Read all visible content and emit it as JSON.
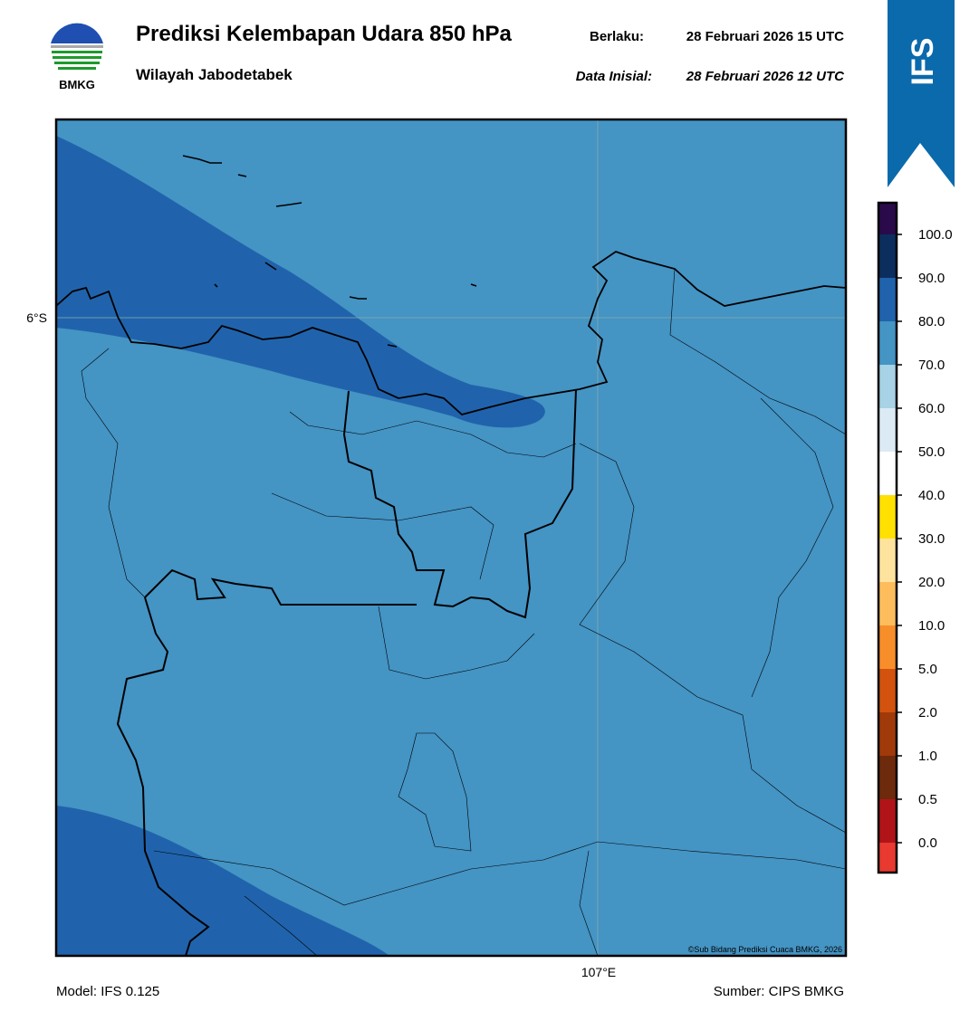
{
  "header": {
    "title": "Prediksi Kelembapan Udara 850 hPa",
    "subtitle": "Wilayah Jabodetabek",
    "valid": {
      "label": "Berlaku:",
      "value": "28 Februari 2026 15 UTC"
    },
    "init": {
      "label": "Data Inisial:",
      "value": "28 Februari 2026 12 UTC"
    }
  },
  "logo": "BMKG",
  "badge": "IFS",
  "map": {
    "lat_label": "6°S",
    "lon_label": "107°E",
    "credit": "©Sub Bidang Prediksi Cuaca BMKG, 2026"
  },
  "colorbar": {
    "labels": [
      "0.0",
      "0.5",
      "1.0",
      "2.0",
      "5.0",
      "10.0",
      "20.0",
      "30.0",
      "40.0",
      "50.0",
      "60.0",
      "70.0",
      "80.0",
      "90.0",
      "100.0"
    ],
    "colors": [
      "#e83a30",
      "#b01418",
      "#6e2a0c",
      "#a03a0a",
      "#d2520e",
      "#f78e2a",
      "#fdbd5c",
      "#fee39e",
      "#ffe000",
      "#ffffff",
      "#dbeaf4",
      "#a8d2e6",
      "#4494c4",
      "#2063ac",
      "#0c2e5e",
      "#2a0a4a"
    ]
  },
  "footer": {
    "model": "Model: IFS 0.125",
    "source": "Sumber: CIPS BMKG"
  }
}
